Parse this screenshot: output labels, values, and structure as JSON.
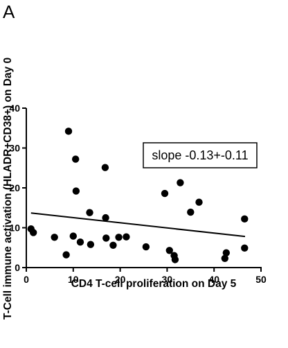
{
  "panel_label": "A",
  "chart_data": {
    "type": "scatter",
    "xlabel": "CD4 T-cell proliferation on Day 5",
    "ylabel": "T-Cell immune activation (HLADR+CD38+) on Day 0",
    "xlim": [
      0,
      50
    ],
    "ylim": [
      0,
      40
    ],
    "x_ticks": [
      0,
      10,
      20,
      30,
      40,
      50
    ],
    "y_ticks": [
      0,
      10,
      20,
      30,
      40
    ],
    "grid": false,
    "points": [
      {
        "x": 1,
        "y": 9.7
      },
      {
        "x": 1.5,
        "y": 8.8
      },
      {
        "x": 6,
        "y": 7.6
      },
      {
        "x": 8.5,
        "y": 3.2
      },
      {
        "x": 9,
        "y": 34.2
      },
      {
        "x": 10,
        "y": 7.9
      },
      {
        "x": 10.5,
        "y": 27.2
      },
      {
        "x": 10.6,
        "y": 19.2
      },
      {
        "x": 11.5,
        "y": 6.4
      },
      {
        "x": 13.5,
        "y": 13.8
      },
      {
        "x": 13.7,
        "y": 5.8
      },
      {
        "x": 16.8,
        "y": 25.1
      },
      {
        "x": 16.9,
        "y": 12.5
      },
      {
        "x": 17,
        "y": 7.4
      },
      {
        "x": 18.5,
        "y": 5.6
      },
      {
        "x": 19.7,
        "y": 7.6
      },
      {
        "x": 21.3,
        "y": 7.7
      },
      {
        "x": 25.5,
        "y": 5.2
      },
      {
        "x": 29.5,
        "y": 18.6
      },
      {
        "x": 30.5,
        "y": 4.3
      },
      {
        "x": 31.5,
        "y": 3.0
      },
      {
        "x": 31.7,
        "y": 2.0
      },
      {
        "x": 32.8,
        "y": 21.3
      },
      {
        "x": 35,
        "y": 13.9
      },
      {
        "x": 36.8,
        "y": 16.4
      },
      {
        "x": 42.3,
        "y": 2.3
      },
      {
        "x": 42.6,
        "y": 3.7
      },
      {
        "x": 46.5,
        "y": 12.2
      },
      {
        "x": 46.5,
        "y": 4.9
      }
    ],
    "fit_line": {
      "x": [
        1,
        46.6
      ],
      "y": [
        13.7,
        7.8
      ]
    },
    "annotation": "slope -0.13+-0.11"
  }
}
